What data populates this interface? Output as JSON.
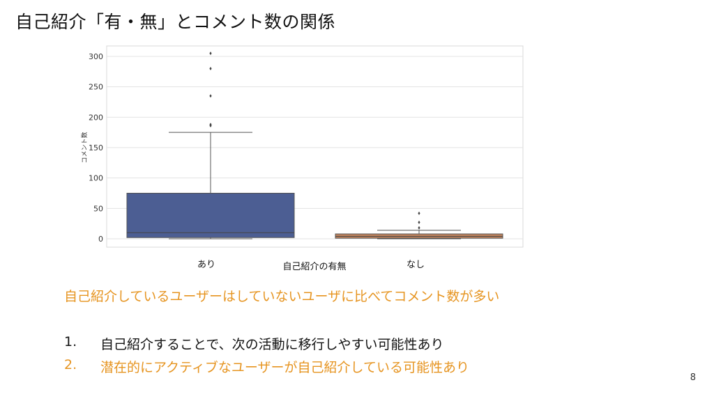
{
  "slide": {
    "title": "自己紹介「有・無」とコメント数の関係",
    "finding": "自己紹介しているユーザーはしていないユーザに比べてコメント数が多い",
    "reasons": [
      {
        "num": "1.",
        "text": "自己紹介することで、次の活動に移行しやすい可能性あり",
        "color": "#111111"
      },
      {
        "num": "2.",
        "text": "潜在的にアクティブなユーザーが自己紹介している可能性あり",
        "color": "#e69420"
      }
    ],
    "page_number": "8"
  },
  "chart_data": {
    "type": "boxplot",
    "xlabel": "自己紹介の有無",
    "ylabel": "コメント数",
    "ylim": [
      -5,
      310
    ],
    "yticks": [
      0,
      50,
      100,
      150,
      200,
      250,
      300
    ],
    "grid": true,
    "categories": [
      "あり",
      "なし"
    ],
    "boxes": [
      {
        "category": "あり",
        "whisker_low": 0,
        "q1": 2,
        "median": 10,
        "q3": 75,
        "whisker_high": 175,
        "outliers": [
          186,
          188,
          235,
          280,
          305
        ],
        "color": "#4c5e93"
      },
      {
        "category": "なし",
        "whisker_low": 0,
        "q1": 1,
        "median": 4,
        "q3": 8,
        "whisker_high": 14,
        "outliers": [
          18,
          27,
          42
        ],
        "color": "#c0825c"
      }
    ]
  }
}
